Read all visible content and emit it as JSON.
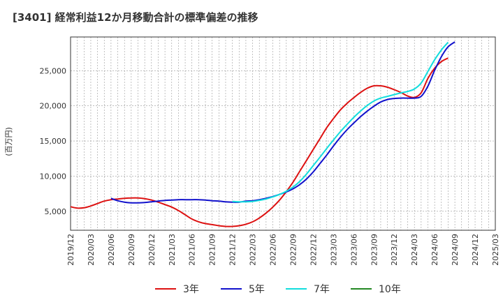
{
  "chart_data": {
    "type": "line",
    "title": "[3401]  経常利益12か月移動合計の標準偏差の推移",
    "ylabel": "(百万円)",
    "xlabel": "",
    "ylim": [
      2300,
      29800
    ],
    "y_ticks": [
      5000,
      10000,
      15000,
      20000,
      25000
    ],
    "y_tick_labels": [
      "5,000",
      "10,000",
      "15,000",
      "20,000",
      "25,000"
    ],
    "x_tick_labels": [
      "2019/12",
      "2020/03",
      "2020/06",
      "2020/09",
      "2020/12",
      "2021/03",
      "2021/06",
      "2021/09",
      "2021/12",
      "2022/03",
      "2022/06",
      "2022/09",
      "2022/12",
      "2023/03",
      "2023/06",
      "2023/09",
      "2023/12",
      "2024/03",
      "2024/06",
      "2024/09",
      "2024/12",
      "2025/03"
    ],
    "grid": true,
    "legend_position": "bottom",
    "series": [
      {
        "name": "3年",
        "color": "#dd1111",
        "points": [
          [
            0,
            5650
          ],
          [
            1,
            5450
          ],
          [
            2,
            5500
          ],
          [
            3,
            5750
          ],
          [
            4,
            6100
          ],
          [
            5,
            6450
          ],
          [
            6,
            6650
          ],
          [
            7,
            6750
          ],
          [
            8,
            6850
          ],
          [
            9,
            6900
          ],
          [
            10,
            6900
          ],
          [
            11,
            6800
          ],
          [
            12,
            6600
          ],
          [
            13,
            6300
          ],
          [
            14,
            5950
          ],
          [
            15,
            5600
          ],
          [
            16,
            5100
          ],
          [
            17,
            4500
          ],
          [
            18,
            3900
          ],
          [
            19,
            3500
          ],
          [
            20,
            3250
          ],
          [
            21,
            3100
          ],
          [
            22,
            2950
          ],
          [
            23,
            2850
          ],
          [
            24,
            2850
          ],
          [
            25,
            2950
          ],
          [
            26,
            3150
          ],
          [
            27,
            3500
          ],
          [
            28,
            4050
          ],
          [
            29,
            4750
          ],
          [
            30,
            5600
          ],
          [
            31,
            6600
          ],
          [
            32,
            7800
          ],
          [
            33,
            9150
          ],
          [
            34,
            10700
          ],
          [
            35,
            12250
          ],
          [
            36,
            13800
          ],
          [
            37,
            15350
          ],
          [
            38,
            16900
          ],
          [
            39,
            18200
          ],
          [
            40,
            19400
          ],
          [
            41,
            20350
          ],
          [
            42,
            21150
          ],
          [
            43,
            21900
          ],
          [
            44,
            22500
          ],
          [
            45,
            22850
          ],
          [
            46,
            22850
          ],
          [
            47,
            22650
          ],
          [
            48,
            22300
          ],
          [
            49,
            21900
          ],
          [
            50,
            21400
          ],
          [
            51,
            21200
          ],
          [
            52,
            21850
          ],
          [
            53,
            23900
          ],
          [
            54,
            25350
          ],
          [
            55,
            26300
          ],
          [
            56,
            26800
          ]
        ]
      },
      {
        "name": "5年",
        "color": "#1111cc",
        "points": [
          [
            6,
            6850
          ],
          [
            7,
            6500
          ],
          [
            8,
            6300
          ],
          [
            9,
            6200
          ],
          [
            10,
            6200
          ],
          [
            11,
            6250
          ],
          [
            12,
            6350
          ],
          [
            13,
            6450
          ],
          [
            14,
            6550
          ],
          [
            15,
            6600
          ],
          [
            16,
            6650
          ],
          [
            17,
            6650
          ],
          [
            18,
            6650
          ],
          [
            19,
            6650
          ],
          [
            20,
            6600
          ],
          [
            21,
            6500
          ],
          [
            22,
            6450
          ],
          [
            23,
            6350
          ],
          [
            24,
            6300
          ],
          [
            25,
            6300
          ],
          [
            26,
            6450
          ],
          [
            27,
            6500
          ],
          [
            28,
            6650
          ],
          [
            29,
            6850
          ],
          [
            30,
            7100
          ],
          [
            31,
            7400
          ],
          [
            32,
            7750
          ],
          [
            33,
            8200
          ],
          [
            34,
            8800
          ],
          [
            35,
            9600
          ],
          [
            36,
            10600
          ],
          [
            37,
            11800
          ],
          [
            38,
            13000
          ],
          [
            39,
            14300
          ],
          [
            40,
            15500
          ],
          [
            41,
            16600
          ],
          [
            42,
            17550
          ],
          [
            43,
            18450
          ],
          [
            44,
            19250
          ],
          [
            45,
            19950
          ],
          [
            46,
            20550
          ],
          [
            47,
            20900
          ],
          [
            48,
            21050
          ],
          [
            49,
            21100
          ],
          [
            50,
            21100
          ],
          [
            51,
            21100
          ],
          [
            52,
            21350
          ],
          [
            53,
            22800
          ],
          [
            54,
            25050
          ],
          [
            55,
            27000
          ],
          [
            56,
            28400
          ],
          [
            57,
            29100
          ]
        ]
      },
      {
        "name": "7年",
        "color": "#11dddd",
        "points": [
          [
            24,
            6400
          ],
          [
            25,
            6350
          ],
          [
            26,
            6350
          ],
          [
            27,
            6400
          ],
          [
            28,
            6550
          ],
          [
            29,
            6750
          ],
          [
            30,
            7050
          ],
          [
            31,
            7400
          ],
          [
            32,
            7850
          ],
          [
            33,
            8450
          ],
          [
            34,
            9250
          ],
          [
            35,
            10300
          ],
          [
            36,
            11500
          ],
          [
            37,
            12700
          ],
          [
            38,
            13950
          ],
          [
            39,
            15150
          ],
          [
            40,
            16300
          ],
          [
            41,
            17350
          ],
          [
            42,
            18350
          ],
          [
            43,
            19250
          ],
          [
            44,
            20050
          ],
          [
            45,
            20700
          ],
          [
            46,
            21100
          ],
          [
            47,
            21350
          ],
          [
            48,
            21600
          ],
          [
            49,
            21850
          ],
          [
            50,
            22050
          ],
          [
            51,
            22400
          ],
          [
            52,
            23250
          ],
          [
            53,
            24900
          ],
          [
            54,
            26550
          ],
          [
            55,
            27950
          ],
          [
            56,
            29050
          ]
        ]
      },
      {
        "name": "10年",
        "color": "#228822",
        "points": []
      }
    ]
  }
}
